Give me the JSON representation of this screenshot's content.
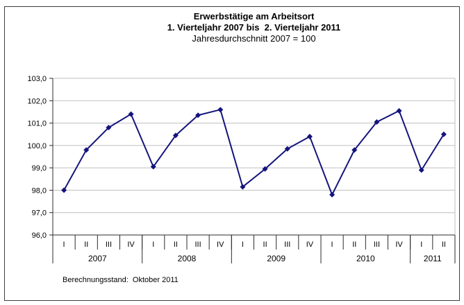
{
  "window": {
    "background": "#ffffff",
    "frame_color": "#3c3c3c"
  },
  "chart_data": {
    "type": "line",
    "title": "Erwerbstätige am Arbeitsort",
    "subtitle": "1. Vierteljahr 2007 bis  2. Vierteljahr 2011",
    "subtitle2": "Jahresdurchschnitt 2007 = 100",
    "footnote": "Berechnungsstand:  Oktober 2011",
    "categories": [
      "I",
      "II",
      "III",
      "IV",
      "I",
      "II",
      "III",
      "IV",
      "I",
      "II",
      "III",
      "IV",
      "I",
      "II",
      "III",
      "IV",
      "I",
      "II"
    ],
    "year_groups": [
      {
        "label": "2007",
        "count": 4
      },
      {
        "label": "2008",
        "count": 4
      },
      {
        "label": "2009",
        "count": 4
      },
      {
        "label": "2010",
        "count": 4
      },
      {
        "label": "2011",
        "count": 2
      }
    ],
    "values": [
      98.0,
      99.8,
      100.8,
      101.4,
      99.05,
      100.45,
      101.35,
      101.6,
      98.15,
      98.95,
      99.85,
      100.4,
      97.8,
      99.8,
      101.05,
      101.55,
      98.9,
      100.5
    ],
    "ylim": [
      96.0,
      103.0
    ],
    "ytick_step": 1.0,
    "ytick_labels": [
      "96,0",
      "97,0",
      "98,0",
      "99,0",
      "100,0",
      "101,0",
      "102,0",
      "103,0"
    ],
    "grid": true,
    "legend": "none",
    "marker": "diamond",
    "line_color": "#14147d",
    "grid_color": "#bfbfbf",
    "axis_color": "#2b2b2b"
  }
}
